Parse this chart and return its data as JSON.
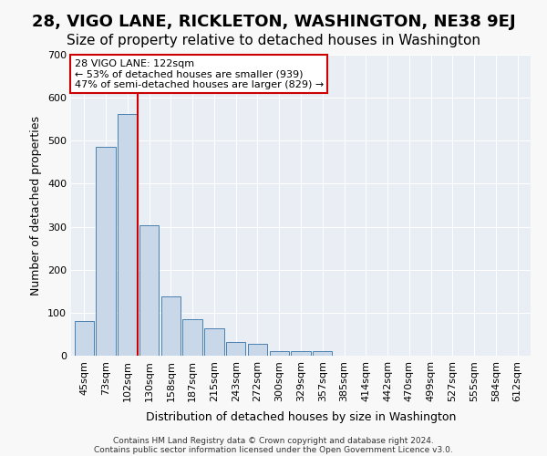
{
  "title": "28, VIGO LANE, RICKLETON, WASHINGTON, NE38 9EJ",
  "subtitle": "Size of property relative to detached houses in Washington",
  "xlabel": "Distribution of detached houses by size in Washington",
  "ylabel": "Number of detached properties",
  "footnote1": "Contains HM Land Registry data © Crown copyright and database right 2024.",
  "footnote2": "Contains public sector information licensed under the Open Government Licence v3.0.",
  "bar_labels": [
    "45sqm",
    "73sqm",
    "102sqm",
    "130sqm",
    "158sqm",
    "187sqm",
    "215sqm",
    "243sqm",
    "272sqm",
    "300sqm",
    "329sqm",
    "357sqm",
    "385sqm",
    "414sqm",
    "442sqm",
    "470sqm",
    "499sqm",
    "527sqm",
    "555sqm",
    "584sqm",
    "612sqm"
  ],
  "bar_values": [
    80,
    485,
    563,
    303,
    137,
    85,
    63,
    32,
    27,
    10,
    10,
    10,
    0,
    0,
    0,
    0,
    0,
    0,
    0,
    0,
    0
  ],
  "bar_color": "#c8d8e8",
  "bar_edge_color": "#4a7fb0",
  "ylim": [
    0,
    700
  ],
  "yticks": [
    0,
    100,
    200,
    300,
    400,
    500,
    600,
    700
  ],
  "vline_x": 2.45,
  "vline_color": "#cc0000",
  "annotation_text": "28 VIGO LANE: 122sqm\n← 53% of detached houses are smaller (939)\n47% of semi-detached houses are larger (829) →",
  "annotation_box_color": "#ffffff",
  "annotation_box_edge": "#cc0000",
  "background_color": "#e8eef4",
  "grid_color": "#ffffff",
  "title_fontsize": 13,
  "subtitle_fontsize": 11,
  "axis_label_fontsize": 9,
  "tick_fontsize": 8,
  "annotation_fontsize": 8
}
